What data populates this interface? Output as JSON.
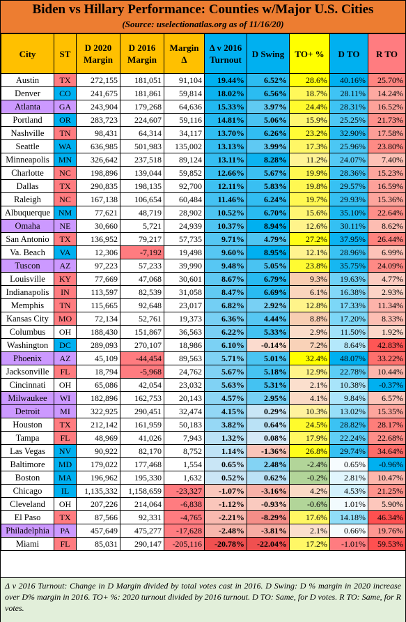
{
  "header": {
    "title": "Biden vs Hillary Performance: Counties w/Major U.S. Cities",
    "subtitle": "(Source: uselectionatlas.org as of 11/16/20)"
  },
  "columns": [
    "City",
    "ST",
    "D 2020 Margin",
    "D 2016 Margin",
    "Margin Δ",
    "Δ v 2016 Turnout",
    "D Swing",
    "TO+ %",
    "D TO",
    "R TO"
  ],
  "rows": [
    {
      "city": "Austin",
      "st": "TX",
      "d2020": "272,155",
      "d2016": "181,051",
      "delta": "91,104",
      "turnout": "19.44%",
      "swing": "6.52%",
      "to": "28.6%",
      "dto": "40.16%",
      "rto": "25.70%"
    },
    {
      "city": "Denver",
      "st": "CO",
      "d2020": "241,675",
      "d2016": "181,861",
      "delta": "59,814",
      "turnout": "18.02%",
      "swing": "6.56%",
      "to": "18.7%",
      "dto": "28.11%",
      "rto": "14.24%"
    },
    {
      "city": "Atlanta",
      "st": "GA",
      "d2020": "243,904",
      "d2016": "179,268",
      "delta": "64,636",
      "turnout": "15.33%",
      "swing": "3.97%",
      "to": "24.4%",
      "dto": "28.31%",
      "rto": "16.52%"
    },
    {
      "city": "Portland",
      "st": "OR",
      "d2020": "283,723",
      "d2016": "224,607",
      "delta": "59,116",
      "turnout": "14.81%",
      "swing": "5.06%",
      "to": "15.9%",
      "dto": "25.25%",
      "rto": "21.73%"
    },
    {
      "city": "Nashville",
      "st": "TN",
      "d2020": "98,431",
      "d2016": "64,314",
      "delta": "34,117",
      "turnout": "13.70%",
      "swing": "6.26%",
      "to": "23.2%",
      "dto": "32.90%",
      "rto": "17.58%"
    },
    {
      "city": "Seattle",
      "st": "WA",
      "d2020": "636,985",
      "d2016": "501,983",
      "delta": "135,002",
      "turnout": "13.13%",
      "swing": "3.99%",
      "to": "17.3%",
      "dto": "25.96%",
      "rto": "23.80%"
    },
    {
      "city": "Minneapolis",
      "st": "MN",
      "d2020": "326,642",
      "d2016": "237,518",
      "delta": "89,124",
      "turnout": "13.11%",
      "swing": "8.28%",
      "to": "11.2%",
      "dto": "24.07%",
      "rto": "7.40%"
    },
    {
      "city": "Charlotte",
      "st": "NC",
      "d2020": "198,896",
      "d2016": "139,044",
      "delta": "59,852",
      "turnout": "12.66%",
      "swing": "5.67%",
      "to": "19.9%",
      "dto": "28.36%",
      "rto": "15.23%"
    },
    {
      "city": "Dallas",
      "st": "TX",
      "d2020": "290,835",
      "d2016": "198,135",
      "delta": "92,700",
      "turnout": "12.11%",
      "swing": "5.83%",
      "to": "19.8%",
      "dto": "29.57%",
      "rto": "16.59%"
    },
    {
      "city": "Raleigh",
      "st": "NC",
      "d2020": "167,138",
      "d2016": "106,654",
      "delta": "60,484",
      "turnout": "11.46%",
      "swing": "6.24%",
      "to": "19.7%",
      "dto": "29.93%",
      "rto": "15.36%"
    },
    {
      "city": "Albuquerque",
      "st": "NM",
      "d2020": "77,621",
      "d2016": "48,719",
      "delta": "28,902",
      "turnout": "10.52%",
      "swing": "6.70%",
      "to": "15.6%",
      "dto": "35.10%",
      "rto": "22.64%"
    },
    {
      "city": "Omaha",
      "st": "NE",
      "d2020": "30,660",
      "d2016": "5,721",
      "delta": "24,939",
      "turnout": "10.37%",
      "swing": "8.94%",
      "to": "12.6%",
      "dto": "30.11%",
      "rto": "8.62%"
    },
    {
      "city": "San Antonio",
      "st": "TX",
      "d2020": "136,952",
      "d2016": "79,217",
      "delta": "57,735",
      "turnout": "9.71%",
      "swing": "4.79%",
      "to": "27.2%",
      "dto": "37.95%",
      "rto": "26.44%"
    },
    {
      "city": "Va. Beach",
      "st": "VA",
      "d2020": "12,306",
      "d2016": "-7,192",
      "delta": "19,498",
      "turnout": "9.60%",
      "swing": "8.95%",
      "to": "12.1%",
      "dto": "28.96%",
      "rto": "6.99%"
    },
    {
      "city": "Tuscon",
      "st": "AZ",
      "d2020": "97,223",
      "d2016": "57,233",
      "delta": "39,990",
      "turnout": "9.48%",
      "swing": "5.05%",
      "to": "23.8%",
      "dto": "35.75%",
      "rto": "24.09%"
    },
    {
      "city": "Louisville",
      "st": "KY",
      "d2020": "77,669",
      "d2016": "47,068",
      "delta": "30,601",
      "turnout": "8.67%",
      "swing": "6.79%",
      "to": "9.3%",
      "dto": "19.63%",
      "rto": "4.77%"
    },
    {
      "city": "Indianapolis",
      "st": "IN",
      "d2020": "113,597",
      "d2016": "82,539",
      "delta": "31,058",
      "turnout": "8.47%",
      "swing": "6.69%",
      "to": "6.1%",
      "dto": "16.38%",
      "rto": "2.93%"
    },
    {
      "city": "Memphis",
      "st": "TN",
      "d2020": "115,665",
      "d2016": "92,648",
      "delta": "23,017",
      "turnout": "6.82%",
      "swing": "2.92%",
      "to": "12.8%",
      "dto": "17.33%",
      "rto": "11.34%"
    },
    {
      "city": "Kansas City",
      "st": "MO",
      "d2020": "72,134",
      "d2016": "52,761",
      "delta": "19,373",
      "turnout": "6.36%",
      "swing": "4.44%",
      "to": "8.8%",
      "dto": "17.20%",
      "rto": "8.33%"
    },
    {
      "city": "Columbus",
      "st": "OH",
      "d2020": "188,430",
      "d2016": "151,867",
      "delta": "36,563",
      "turnout": "6.22%",
      "swing": "5.33%",
      "to": "2.9%",
      "dto": "11.50%",
      "rto": "1.92%"
    },
    {
      "city": "Washington",
      "st": "DC",
      "d2020": "289,093",
      "d2016": "270,107",
      "delta": "18,986",
      "turnout": "6.10%",
      "swing": "-0.14%",
      "to": "7.2%",
      "dto": "8.64%",
      "rto": "42.83%"
    },
    {
      "city": "Phoenix",
      "st": "AZ",
      "d2020": "45,109",
      "d2016": "-44,454",
      "delta": "89,563",
      "turnout": "5.71%",
      "swing": "5.01%",
      "to": "32.4%",
      "dto": "48.07%",
      "rto": "33.22%"
    },
    {
      "city": "Jacksonville",
      "st": "FL",
      "d2020": "18,794",
      "d2016": "-5,968",
      "delta": "24,762",
      "turnout": "5.67%",
      "swing": "5.18%",
      "to": "12.9%",
      "dto": "22.78%",
      "rto": "10.44%"
    },
    {
      "city": "Cincinnati",
      "st": "OH",
      "d2020": "65,086",
      "d2016": "42,054",
      "delta": "23,032",
      "turnout": "5.63%",
      "swing": "5.31%",
      "to": "2.1%",
      "dto": "10.38%",
      "rto": "-0.37%"
    },
    {
      "city": "Milwaukee",
      "st": "WI",
      "d2020": "182,896",
      "d2016": "162,753",
      "delta": "20,143",
      "turnout": "4.57%",
      "swing": "2.95%",
      "to": "4.1%",
      "dto": "9.84%",
      "rto": "6.57%"
    },
    {
      "city": "Detroit",
      "st": "MI",
      "d2020": "322,925",
      "d2016": "290,451",
      "delta": "32,474",
      "turnout": "4.15%",
      "swing": "0.29%",
      "to": "10.3%",
      "dto": "13.02%",
      "rto": "15.35%"
    },
    {
      "city": "Houston",
      "st": "TX",
      "d2020": "212,142",
      "d2016": "161,959",
      "delta": "50,183",
      "turnout": "3.82%",
      "swing": "0.64%",
      "to": "24.5%",
      "dto": "28.82%",
      "rto": "28.17%"
    },
    {
      "city": "Tampa",
      "st": "FL",
      "d2020": "48,969",
      "d2016": "41,026",
      "delta": "7,943",
      "turnout": "1.32%",
      "swing": "0.08%",
      "to": "17.9%",
      "dto": "22.24%",
      "rto": "22.68%"
    },
    {
      "city": "Las Vegas",
      "st": "NV",
      "d2020": "90,922",
      "d2016": "82,170",
      "delta": "8,752",
      "turnout": "1.14%",
      "swing": "-1.36%",
      "to": "26.8%",
      "dto": "29.74%",
      "rto": "34.64%"
    },
    {
      "city": "Baltimore",
      "st": "MD",
      "d2020": "179,022",
      "d2016": "177,468",
      "delta": "1,554",
      "turnout": "0.65%",
      "swing": "2.48%",
      "to": "-2.4%",
      "dto": "0.65%",
      "rto": "-0.96%"
    },
    {
      "city": "Boston",
      "st": "MA",
      "d2020": "196,962",
      "d2016": "195,330",
      "delta": "1,632",
      "turnout": "0.52%",
      "swing": "0.62%",
      "to": "-0.2%",
      "dto": "2.81%",
      "rto": "10.47%"
    },
    {
      "city": "Chicago",
      "st": "IL",
      "d2020": "1,135,332",
      "d2016": "1,158,659",
      "delta": "-23,327",
      "turnout": "-1.07%",
      "swing": "-3.16%",
      "to": "4.2%",
      "dto": "4.53%",
      "rto": "21.25%"
    },
    {
      "city": "Cleveland",
      "st": "OH",
      "d2020": "207,226",
      "d2016": "214,064",
      "delta": "-6,838",
      "turnout": "-1.12%",
      "swing": "-0.93%",
      "to": "-0.6%",
      "dto": "1.01%",
      "rto": "5.90%"
    },
    {
      "city": "El Paso",
      "st": "TX",
      "d2020": "87,566",
      "d2016": "92,331",
      "delta": "-4,765",
      "turnout": "-2.21%",
      "swing": "-8.29%",
      "to": "17.6%",
      "dto": "14.18%",
      "rto": "46.34%"
    },
    {
      "city": "Philadelphia",
      "st": "PA",
      "d2020": "457,649",
      "d2016": "475,277",
      "delta": "-17,628",
      "turnout": "-2.48%",
      "swing": "-3.81%",
      "to": "2.1%",
      "dto": "0.66%",
      "rto": "19.76%"
    },
    {
      "city": "Miami",
      "st": "FL",
      "d2020": "85,031",
      "d2016": "290,147",
      "delta": "-205,116",
      "turnout": "-20.78%",
      "swing": "-22.04%",
      "to": "17.2%",
      "dto": "-1.01%",
      "rto": "59.53%"
    }
  ],
  "footnote": "Δ v 2016 Turnout: Change in D Margin divided by total votes cast in 2016. D Swing: D % margin in 2020 increase over D% margin in 2016. TO+ %: 2020 turnout divided by 2016 turnout. D TO: Same, for D votes. R TO: Same, for R votes.",
  "colors": {
    "header_orange": "#ed7d31",
    "header_gold": "#ffc000",
    "dem_blue": "#5b9bd5",
    "rep_red": "#ff7c80",
    "swing_state_purple": "#cc99ff",
    "turnout_yellow": "#ffff00",
    "dark_blue": "#00b0f0",
    "footnote_green": "#e2efda"
  },
  "highlight_cities": [
    "Atlanta",
    "Omaha",
    "Tuscon",
    "Phoenix",
    "Milwaukee",
    "Detroit",
    "Philadelphia"
  ],
  "dem_states": [
    "CO",
    "OR",
    "WA",
    "MN",
    "NM",
    "VA",
    "DC",
    "NV",
    "MD",
    "MA",
    "IL"
  ],
  "rep_states": [
    "TX",
    "TN",
    "NC",
    "KY",
    "IN",
    "MO",
    "FL"
  ]
}
